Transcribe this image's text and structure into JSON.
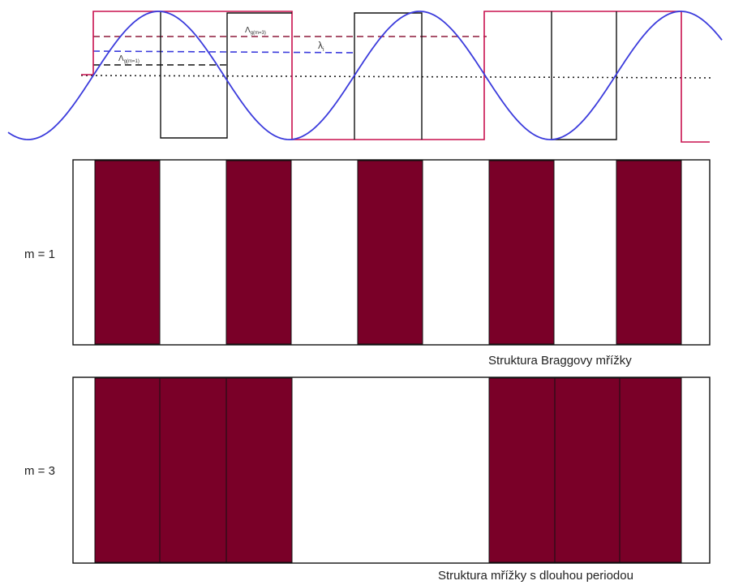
{
  "labels": {
    "lambda_m3": "Λ",
    "lambda_m3_sub": "g(m=3)",
    "lambda_m1": "Λ",
    "lambda_m1_sub": "g(m=1)",
    "lambda": "λ",
    "lambda_sub": "i",
    "m1": "m = 1",
    "m3": "m = 3",
    "caption1": "Struktura Braggovy mřížky",
    "caption2": "Struktura mřížky s dlouhou periodou"
  },
  "colors": {
    "sine": "#3b3bdc",
    "red_square": "#c8104e",
    "black_square": "#111111",
    "grating_fill": "#7a0028",
    "dash_red": "#8e1a3c",
    "dash_blue": "#3b3bdc"
  }
}
